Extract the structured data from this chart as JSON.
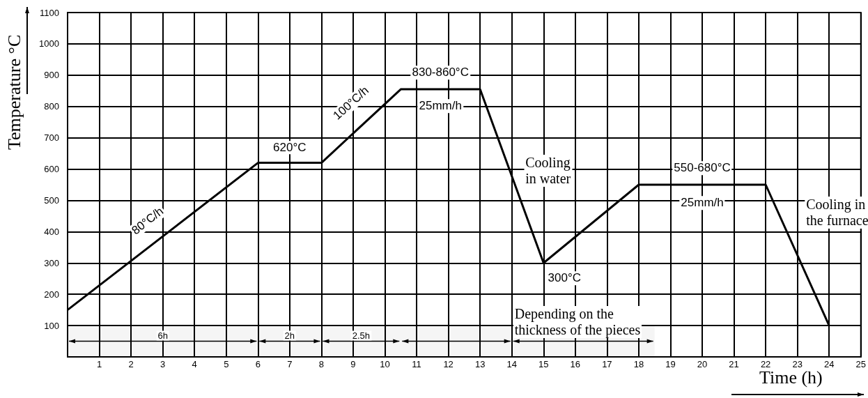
{
  "chart_data": {
    "type": "line",
    "xlabel": "Time (h)",
    "ylabel": "Temperature °C",
    "x": [
      0,
      6,
      8,
      10.5,
      13,
      15,
      18,
      22,
      24
    ],
    "series": [
      {
        "color": "#000000",
        "values": [
          150,
          620,
          620,
          855,
          855,
          300,
          550,
          550,
          100
        ]
      }
    ],
    "xlim": [
      0,
      25
    ],
    "xticks": [
      1,
      2,
      3,
      4,
      5,
      6,
      7,
      8,
      9,
      10,
      11,
      12,
      13,
      14,
      15,
      16,
      17,
      18,
      19,
      20,
      21,
      22,
      23,
      24,
      25
    ],
    "ylim": [
      0,
      1100
    ],
    "yticks": [
      100,
      200,
      300,
      400,
      500,
      600,
      700,
      800,
      900,
      1000,
      1100
    ],
    "grid": true,
    "marker": "none",
    "line_style": "solid",
    "bands": [
      {
        "axis": "x",
        "from": 0,
        "to": 6,
        "label": "6h"
      },
      {
        "axis": "x",
        "from": 6,
        "to": 8,
        "label": "2h"
      },
      {
        "axis": "x",
        "from": 8,
        "to": 10.5,
        "label": "2.5h"
      },
      {
        "axis": "x",
        "from": 10.5,
        "to": 14
      },
      {
        "axis": "x",
        "from": 14,
        "to": 18.5,
        "label": "Depending on the\nthickness of the pieces"
      }
    ],
    "annotations": [
      {
        "text": "80°C/h",
        "x": 3,
        "y": 385
      },
      {
        "text": "620°C",
        "x": 7,
        "y": 620
      },
      {
        "text": "100°C/h",
        "x": 9.5,
        "y": 761
      },
      {
        "text": "830-860°C",
        "x": 11.75,
        "y": 855
      },
      {
        "text": "25mm/h",
        "x": 11.75,
        "y": 855
      },
      {
        "text": "Cooling\nin water",
        "x": 14,
        "y": 577
      },
      {
        "text": "300°C",
        "x": 15,
        "y": 300
      },
      {
        "text": "550-680°C",
        "x": 20,
        "y": 550
      },
      {
        "text": "25mm/h",
        "x": 20,
        "y": 550
      },
      {
        "text": "Cooling in\nthe furnace",
        "x": 22.5,
        "y": 438
      }
    ]
  }
}
